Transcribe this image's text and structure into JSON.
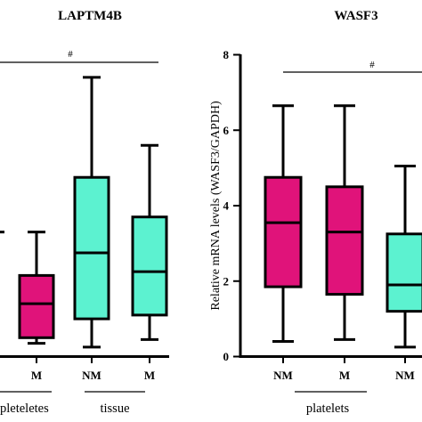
{
  "chart_data": [
    {
      "type": "box",
      "title": "LAPTM4B",
      "ylabel": "",
      "categories": [
        "",
        "M",
        "NM",
        "M"
      ],
      "box_colors": [
        "#e0137a",
        "#e0137a",
        "#5cf2d0",
        "#5cf2d0"
      ],
      "boxes": [
        {
          "label": "",
          "min": null,
          "q1": null,
          "median": null,
          "q3": null,
          "max": 3.3
        },
        {
          "label": "M",
          "min": 0.35,
          "q1": 0.5,
          "median": 1.4,
          "q3": 2.15,
          "max": 3.3
        },
        {
          "label": "NM",
          "min": 0.25,
          "q1": 1.0,
          "median": 2.75,
          "q3": 4.75,
          "max": 7.4
        },
        {
          "label": "M",
          "min": 0.45,
          "q1": 1.1,
          "median": 2.25,
          "q3": 3.7,
          "max": 5.6
        }
      ],
      "groups": [
        {
          "label": "pleteletes"
        },
        {
          "label": "tissue"
        }
      ],
      "significance": "#",
      "ylim": [
        0,
        8
      ]
    },
    {
      "type": "box",
      "title": "WASF3",
      "ylabel": "Relative mRNA levels (WASF3/GAPDH)",
      "yticks": [
        "0",
        "2",
        "4",
        "6",
        "8"
      ],
      "categories": [
        "NM",
        "M",
        "NM"
      ],
      "box_colors": [
        "#e0137a",
        "#e0137a",
        "#5cf2d0"
      ],
      "boxes": [
        {
          "label": "NM",
          "min": 0.4,
          "q1": 1.85,
          "median": 3.55,
          "q3": 4.75,
          "max": 6.65
        },
        {
          "label": "M",
          "min": 0.45,
          "q1": 1.65,
          "median": 3.3,
          "q3": 4.5,
          "max": 6.65
        },
        {
          "label": "NM",
          "min": 0.25,
          "q1": 1.2,
          "median": 1.9,
          "q3": 3.25,
          "max": 5.05
        }
      ],
      "groups": [
        {
          "label": "platelets"
        }
      ],
      "significance": "#",
      "ylim": [
        0,
        8
      ]
    }
  ]
}
